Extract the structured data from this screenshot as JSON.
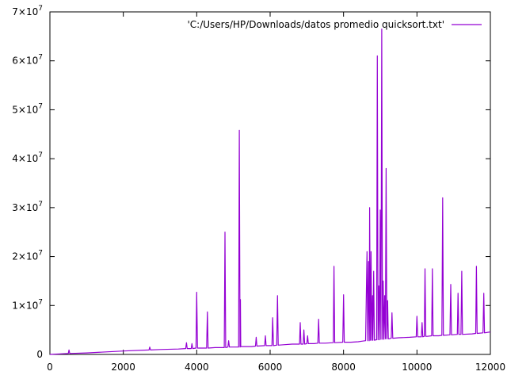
{
  "chart_data": {
    "type": "line",
    "title": "",
    "xlabel": "",
    "ylabel": "",
    "xlim": [
      0,
      12000
    ],
    "ylim": [
      0,
      70000000
    ],
    "grid": false,
    "legend": "top-right",
    "x_ticks": [
      {
        "value": 0,
        "label": "0"
      },
      {
        "value": 2000,
        "label": "2000"
      },
      {
        "value": 4000,
        "label": "4000"
      },
      {
        "value": 6000,
        "label": "6000"
      },
      {
        "value": 8000,
        "label": "8000"
      },
      {
        "value": 10000,
        "label": "10000"
      },
      {
        "value": 12000,
        "label": "12000"
      }
    ],
    "y_ticks": [
      {
        "value": 0,
        "mant": "0",
        "exp": ""
      },
      {
        "value": 10000000,
        "mant": "1×10",
        "exp": "7"
      },
      {
        "value": 20000000,
        "mant": "2×10",
        "exp": "7"
      },
      {
        "value": 30000000,
        "mant": "3×10",
        "exp": "7"
      },
      {
        "value": 40000000,
        "mant": "4×10",
        "exp": "7"
      },
      {
        "value": 50000000,
        "mant": "5×10",
        "exp": "7"
      },
      {
        "value": 60000000,
        "mant": "6×10",
        "exp": "7"
      },
      {
        "value": 70000000,
        "mant": "7×10",
        "exp": "7"
      }
    ],
    "series": [
      {
        "name": "'C:/Users/HP/Downloads/datos promedio quicksort.txt'",
        "color": "#9400d3",
        "x": [
          0,
          500,
          520,
          540,
          1000,
          2000,
          2700,
          2720,
          2740,
          3000,
          3500,
          3700,
          3720,
          3740,
          3850,
          3870,
          3890,
          3980,
          4000,
          4020,
          4270,
          4290,
          4310,
          4500,
          4750,
          4770,
          4790,
          4850,
          4870,
          4890,
          5000,
          5140,
          5160,
          5180,
          5190,
          5200,
          5220,
          5500,
          5600,
          5620,
          5640,
          5850,
          5870,
          5890,
          6050,
          6070,
          6090,
          6180,
          6200,
          6220,
          6400,
          6600,
          6800,
          6820,
          6840,
          6900,
          6920,
          6940,
          7000,
          7020,
          7040,
          7200,
          7300,
          7320,
          7340,
          7500,
          7720,
          7740,
          7760,
          7980,
          8000,
          8020,
          8200,
          8400,
          8500,
          8600,
          8640,
          8660,
          8680,
          8700,
          8710,
          8730,
          8750,
          8770,
          8790,
          8800,
          8820,
          8840,
          8900,
          8920,
          8940,
          8960,
          8980,
          9000,
          9020,
          9040,
          9060,
          9080,
          9100,
          9120,
          9140,
          9160,
          9180,
          9200,
          9220,
          9240,
          9300,
          9320,
          9340,
          9500,
          9800,
          9980,
          10000,
          10020,
          10120,
          10140,
          10160,
          10200,
          10220,
          10240,
          10280,
          10400,
          10420,
          10440,
          10600,
          10680,
          10700,
          10720,
          10900,
          10920,
          10940,
          11100,
          11120,
          11140,
          11200,
          11220,
          11240,
          11500,
          11600,
          11620,
          11640,
          11800,
          11820,
          11840,
          12000
        ],
        "values": [
          0,
          200000,
          900000,
          200000,
          300000,
          700000,
          900000,
          1500000,
          900000,
          1000000,
          1100000,
          1200000,
          2400000,
          1200000,
          1200000,
          2200000,
          1200000,
          1300000,
          12700000,
          1300000,
          1300000,
          8700000,
          1300000,
          1400000,
          1400000,
          25000000,
          1400000,
          1500000,
          2800000,
          1500000,
          1500000,
          1500000,
          45800000,
          1500000,
          11200000,
          1600000,
          1600000,
          1600000,
          1700000,
          3500000,
          1700000,
          1800000,
          3800000,
          1800000,
          1800000,
          7500000,
          1800000,
          1900000,
          12000000,
          1900000,
          2000000,
          2100000,
          2100000,
          6500000,
          2100000,
          2100000,
          5000000,
          2100000,
          2200000,
          3800000,
          2200000,
          2200000,
          2300000,
          7200000,
          2300000,
          2300000,
          2400000,
          18000000,
          2400000,
          2500000,
          12200000,
          2500000,
          2500000,
          2600000,
          2700000,
          2800000,
          21000000,
          2800000,
          19000000,
          2800000,
          30000000,
          2900000,
          21000000,
          2900000,
          12000000,
          2900000,
          17000000,
          2900000,
          3000000,
          61000000,
          3000000,
          14000000,
          3000000,
          29500000,
          3100000,
          66500000,
          3100000,
          15000000,
          3100000,
          12000000,
          3200000,
          38000000,
          3200000,
          11000000,
          3200000,
          3200000,
          3300000,
          8500000,
          3300000,
          3400000,
          3500000,
          3600000,
          7800000,
          3600000,
          3600000,
          6500000,
          3600000,
          3700000,
          17500000,
          3700000,
          3700000,
          3800000,
          17500000,
          3800000,
          3800000,
          3900000,
          32000000,
          3900000,
          4000000,
          14300000,
          4000000,
          4100000,
          12500000,
          4100000,
          4100000,
          17000000,
          4100000,
          4200000,
          4300000,
          18000000,
          4300000,
          4400000,
          12500000,
          4400000,
          4600000
        ]
      }
    ]
  }
}
